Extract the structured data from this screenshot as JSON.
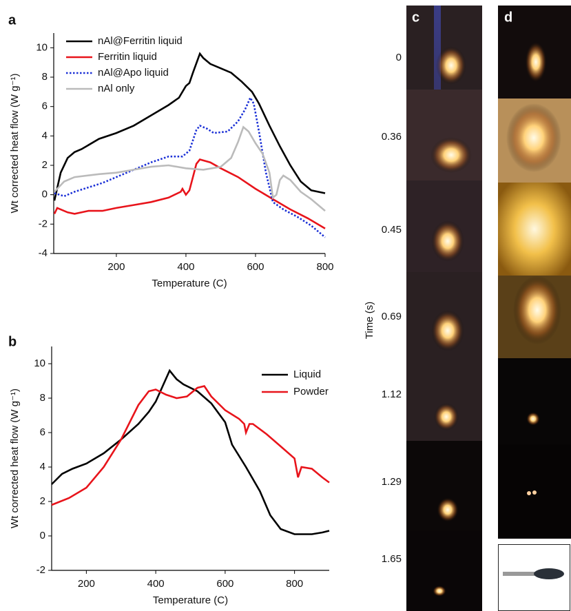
{
  "chart_data": [
    {
      "type": "line",
      "panel_label": "a",
      "xlabel": "Temperature (C)",
      "ylabel": "Wt corrected heat flow (W g⁻¹)",
      "xlim": [
        20,
        800
      ],
      "xticks": [
        200,
        400,
        600,
        800
      ],
      "ylim": [
        -4,
        11
      ],
      "yticks": [
        -4,
        -2,
        0,
        2,
        4,
        6,
        8,
        10
      ],
      "legend": "upper left",
      "series": [
        {
          "name": "nAl@Ferritin liquid",
          "color": "#000000",
          "linestyle": "solid",
          "x": [
            22,
            40,
            60,
            80,
            100,
            150,
            200,
            250,
            300,
            350,
            380,
            400,
            410,
            420,
            440,
            450,
            470,
            500,
            530,
            560,
            590,
            610,
            640,
            670,
            700,
            730,
            760,
            800
          ],
          "values": [
            -0.4,
            1.5,
            2.5,
            2.9,
            3.1,
            3.8,
            4.2,
            4.7,
            5.4,
            6.1,
            6.6,
            7.4,
            7.6,
            8.3,
            9.6,
            9.3,
            8.9,
            8.6,
            8.3,
            7.7,
            7.0,
            6.2,
            4.7,
            3.3,
            2.0,
            0.9,
            0.3,
            0.1
          ]
        },
        {
          "name": "Ferritin liquid",
          "color": "#e8141b",
          "linestyle": "solid",
          "x": [
            22,
            30,
            60,
            80,
            120,
            160,
            200,
            250,
            300,
            350,
            385,
            390,
            400,
            410,
            420,
            430,
            440,
            470,
            500,
            550,
            600,
            650,
            700,
            750,
            800
          ],
          "values": [
            -1.3,
            -0.9,
            -1.2,
            -1.3,
            -1.1,
            -1.1,
            -0.9,
            -0.7,
            -0.5,
            -0.2,
            0.2,
            0.4,
            0.0,
            0.3,
            1.2,
            2.1,
            2.4,
            2.2,
            1.8,
            1.2,
            0.4,
            -0.3,
            -1.0,
            -1.6,
            -2.3
          ]
        },
        {
          "name": "nAl@Apo liquid",
          "color": "#1a2fd6",
          "linestyle": "dotted",
          "x": [
            22,
            50,
            80,
            120,
            160,
            200,
            250,
            300,
            350,
            390,
            410,
            430,
            440,
            460,
            480,
            520,
            550,
            570,
            585,
            595,
            610,
            630,
            650,
            680,
            720,
            760,
            800
          ],
          "values": [
            0.1,
            -0.1,
            0.2,
            0.5,
            0.8,
            1.2,
            1.7,
            2.2,
            2.6,
            2.6,
            3.0,
            4.4,
            4.7,
            4.5,
            4.2,
            4.3,
            5.0,
            5.8,
            6.6,
            6.2,
            4.3,
            1.5,
            -0.5,
            -1.0,
            -1.5,
            -2.1,
            -2.9
          ]
        },
        {
          "name": "nAl only",
          "color": "#bbbbbb",
          "linestyle": "solid",
          "x": [
            22,
            50,
            80,
            150,
            200,
            250,
            300,
            350,
            400,
            450,
            500,
            530,
            550,
            565,
            580,
            600,
            620,
            640,
            650,
            660,
            670,
            680,
            700,
            730,
            760,
            800
          ],
          "values": [
            0.2,
            0.9,
            1.2,
            1.4,
            1.5,
            1.7,
            1.9,
            2.0,
            1.8,
            1.7,
            1.9,
            2.5,
            3.6,
            4.6,
            4.3,
            3.5,
            2.8,
            1.5,
            -0.2,
            0.0,
            1.0,
            1.3,
            1.0,
            0.2,
            -0.3,
            -1.1
          ]
        }
      ]
    },
    {
      "type": "line",
      "panel_label": "b",
      "xlabel": "Temperature (C)",
      "ylabel": "Wt corrected heat flow (W g⁻¹)",
      "xlim": [
        100,
        900
      ],
      "xticks": [
        200,
        400,
        600,
        800
      ],
      "ylim": [
        -2,
        11
      ],
      "yticks": [
        -2,
        0,
        2,
        4,
        6,
        8,
        10
      ],
      "legend": "upper right",
      "series": [
        {
          "name": "Liquid",
          "color": "#000000",
          "linestyle": "solid",
          "x": [
            100,
            130,
            160,
            200,
            250,
            300,
            350,
            380,
            400,
            420,
            440,
            460,
            480,
            520,
            560,
            600,
            620,
            660,
            700,
            730,
            760,
            800,
            850,
            880,
            900
          ],
          "values": [
            3.0,
            3.6,
            3.9,
            4.2,
            4.8,
            5.6,
            6.5,
            7.2,
            7.8,
            8.7,
            9.6,
            9.1,
            8.8,
            8.4,
            7.7,
            6.6,
            5.3,
            4.0,
            2.6,
            1.2,
            0.4,
            0.1,
            0.1,
            0.2,
            0.3
          ]
        },
        {
          "name": "Powder",
          "color": "#e8141b",
          "linestyle": "solid",
          "x": [
            100,
            150,
            200,
            250,
            300,
            350,
            380,
            400,
            430,
            460,
            490,
            520,
            540,
            560,
            600,
            640,
            655,
            660,
            670,
            680,
            720,
            760,
            800,
            810,
            820,
            850,
            880,
            900
          ],
          "values": [
            1.8,
            2.2,
            2.8,
            4.0,
            5.6,
            7.6,
            8.4,
            8.5,
            8.2,
            8.0,
            8.1,
            8.6,
            8.7,
            8.1,
            7.3,
            6.8,
            6.5,
            6.0,
            6.5,
            6.5,
            5.9,
            5.2,
            4.5,
            3.4,
            4.0,
            3.9,
            3.4,
            3.1
          ]
        }
      ]
    }
  ],
  "photos": {
    "labels": [
      "c",
      "d"
    ],
    "time_label": "Time (s)",
    "times": [
      0,
      0.36,
      0.45,
      0.69,
      1.12,
      1.29,
      1.65
    ]
  }
}
